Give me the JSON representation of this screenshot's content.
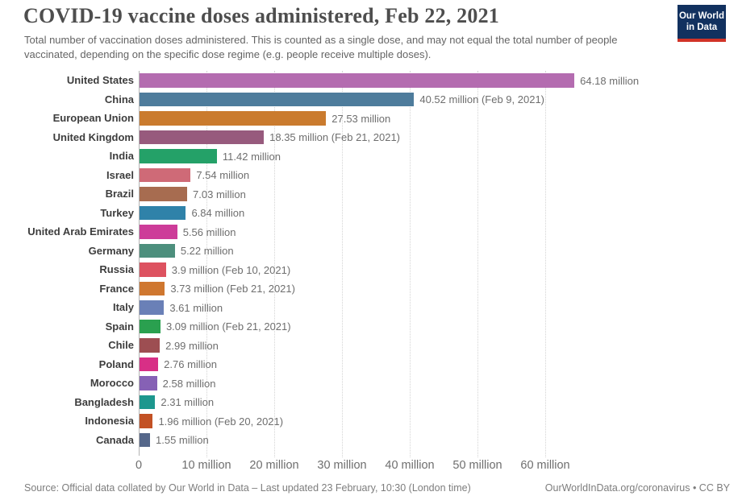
{
  "header": {
    "title": "COVID-19 vaccine doses administered, Feb 22, 2021",
    "subtitle": "Total number of vaccination doses administered. This is counted as a single dose, and may not equal the total number of people vaccinated, depending on the specific dose regime (e.g. people receive multiple doses).",
    "logo": {
      "line1": "Our World",
      "line2": "in Data",
      "bg_color": "#12315f",
      "accent_color": "#d13328"
    }
  },
  "chart_data": {
    "type": "bar",
    "orientation": "horizontal",
    "title": "COVID-19 vaccine doses administered, Feb 22, 2021",
    "unit": "million doses",
    "xlim": [
      0,
      66
    ],
    "grid": true,
    "x_axis": {
      "ticks": [
        {
          "value": 0,
          "label": "0"
        },
        {
          "value": 10,
          "label": "10 million"
        },
        {
          "value": 20,
          "label": "20 million"
        },
        {
          "value": 30,
          "label": "30 million"
        },
        {
          "value": 40,
          "label": "40 million"
        },
        {
          "value": 50,
          "label": "50 million"
        },
        {
          "value": 60,
          "label": "60 million"
        }
      ]
    },
    "rows": [
      {
        "label": "United States",
        "value": 64.18,
        "value_label": "64.18 million",
        "color": "#b46cb0"
      },
      {
        "label": "China",
        "value": 40.52,
        "value_label": "40.52 million (Feb 9, 2021)",
        "color": "#4e7c9c"
      },
      {
        "label": "European Union",
        "value": 27.53,
        "value_label": "27.53 million",
        "color": "#ca7b2e"
      },
      {
        "label": "United Kingdom",
        "value": 18.35,
        "value_label": "18.35 million (Feb 21, 2021)",
        "color": "#975a7d"
      },
      {
        "label": "India",
        "value": 11.42,
        "value_label": "11.42 million",
        "color": "#24a168"
      },
      {
        "label": "Israel",
        "value": 7.54,
        "value_label": "7.54 million",
        "color": "#cf6a77"
      },
      {
        "label": "Brazil",
        "value": 7.03,
        "value_label": "7.03 million",
        "color": "#a76c50"
      },
      {
        "label": "Turkey",
        "value": 6.84,
        "value_label": "6.84 million",
        "color": "#2f82a9"
      },
      {
        "label": "United Arab Emirates",
        "value": 5.56,
        "value_label": "5.56 million",
        "color": "#cd3c99"
      },
      {
        "label": "Germany",
        "value": 5.22,
        "value_label": "5.22 million",
        "color": "#4d8f7d"
      },
      {
        "label": "Russia",
        "value": 3.9,
        "value_label": "3.9 million (Feb 10, 2021)",
        "color": "#dd5260"
      },
      {
        "label": "France",
        "value": 3.73,
        "value_label": "3.73 million (Feb 21, 2021)",
        "color": "#cf772f"
      },
      {
        "label": "Italy",
        "value": 3.61,
        "value_label": "3.61 million",
        "color": "#6a80b7"
      },
      {
        "label": "Spain",
        "value": 3.09,
        "value_label": "3.09 million (Feb 21, 2021)",
        "color": "#2aa04f"
      },
      {
        "label": "Chile",
        "value": 2.99,
        "value_label": "2.99 million",
        "color": "#9d4e52"
      },
      {
        "label": "Poland",
        "value": 2.76,
        "value_label": "2.76 million",
        "color": "#d82f86"
      },
      {
        "label": "Morocco",
        "value": 2.58,
        "value_label": "2.58 million",
        "color": "#8661b5"
      },
      {
        "label": "Bangladesh",
        "value": 2.31,
        "value_label": "2.31 million",
        "color": "#1d978e"
      },
      {
        "label": "Indonesia",
        "value": 1.96,
        "value_label": "1.96 million (Feb 20, 2021)",
        "color": "#c35124"
      },
      {
        "label": "Canada",
        "value": 1.55,
        "value_label": "1.55 million",
        "color": "#55678a"
      }
    ]
  },
  "footer": {
    "source": "Source: Official data collated by Our World in Data – Last updated 23 February, 10:30 (London time)",
    "attribution": "OurWorldInData.org/coronavirus • CC BY"
  }
}
